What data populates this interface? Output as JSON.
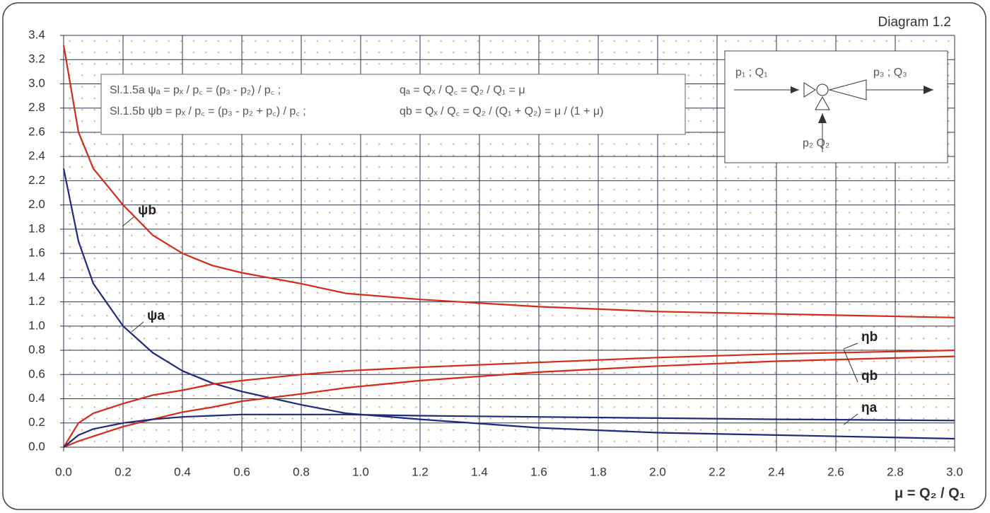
{
  "chart_data": {
    "type": "line",
    "title": "Diagram 1.2",
    "x_label": "μ = Q₂ / Q₁",
    "annotations": {
      "formula_a": "Sl.1.5a  ψₐ = pₓ / p꜀ = (p₃ - p₂) / p꜀ ;",
      "formula_a_q": "qₐ = Qₓ / Q꜀ = Q₂ / Q₁ = μ",
      "formula_b": "Sl.1.5b  ψb = pₓ / p꜀ = (p₃ - p₂ + p꜀) / p꜀ ;",
      "formula_b_q": "qb = Qₓ / Q꜀ = Q₂ / (Q₁ + Q₂) = μ / (1 + μ)",
      "inlet_1": "p₁ ; Q₁",
      "outlet_3": "p₃ ; Q₃",
      "inlet_2": "p₂ Q₂"
    },
    "x": [
      0,
      0.05,
      0.1,
      0.2,
      0.3,
      0.4,
      0.5,
      0.6,
      0.8,
      0.95,
      1.2,
      1.6,
      2.0,
      2.4,
      3.0
    ],
    "series": [
      {
        "name": "ψb",
        "color": "#d42a1a",
        "values": [
          3.32,
          2.6,
          2.3,
          2.0,
          1.75,
          1.6,
          1.5,
          1.44,
          1.35,
          1.27,
          1.22,
          1.16,
          1.12,
          1.1,
          1.07
        ]
      },
      {
        "name": "ψa",
        "color": "#1f2a7a",
        "values": [
          2.3,
          1.7,
          1.35,
          1.0,
          0.78,
          0.63,
          0.53,
          0.46,
          0.35,
          0.28,
          0.23,
          0.16,
          0.12,
          0.1,
          0.07
        ]
      },
      {
        "name": "ηb",
        "color": "#d42a1a",
        "values": [
          0,
          0.2,
          0.28,
          0.36,
          0.43,
          0.47,
          0.52,
          0.55,
          0.6,
          0.63,
          0.66,
          0.7,
          0.74,
          0.77,
          0.8
        ]
      },
      {
        "name": "qb",
        "color": "#d42a1a",
        "values": [
          0,
          0.05,
          0.09,
          0.17,
          0.23,
          0.29,
          0.33,
          0.38,
          0.44,
          0.49,
          0.55,
          0.62,
          0.67,
          0.71,
          0.75
        ]
      },
      {
        "name": "ηa",
        "color": "#1f2a7a",
        "values": [
          0,
          0.1,
          0.15,
          0.2,
          0.23,
          0.25,
          0.26,
          0.27,
          0.27,
          0.27,
          0.26,
          0.25,
          0.24,
          0.23,
          0.22
        ]
      }
    ],
    "xlim": [
      0,
      3.0
    ],
    "ylim": [
      0,
      3.4
    ],
    "xticks": [
      {
        "value": 0,
        "label": "0.0"
      },
      {
        "value": 0.2,
        "label": "0.2"
      },
      {
        "value": 0.4,
        "label": "0.4"
      },
      {
        "value": 0.6,
        "label": "0.6"
      },
      {
        "value": 0.8,
        "label": "0.8"
      },
      {
        "value": 1.0,
        "label": "1.0"
      },
      {
        "value": 1.2,
        "label": "1.2"
      },
      {
        "value": 1.4,
        "label": "1.4"
      },
      {
        "value": 1.6,
        "label": "1.6"
      },
      {
        "value": 1.8,
        "label": "1.8"
      },
      {
        "value": 2.0,
        "label": "2.0"
      },
      {
        "value": 2.2,
        "label": "2.2"
      },
      {
        "value": 2.4,
        "label": "2.4"
      },
      {
        "value": 2.6,
        "label": "2.6"
      },
      {
        "value": 2.8,
        "label": "2.8"
      },
      {
        "value": 3.0,
        "label": "3.0"
      }
    ],
    "yticks": [
      {
        "value": 0,
        "label": "0.0"
      },
      {
        "value": 0.2,
        "label": "0.2"
      },
      {
        "value": 0.4,
        "label": "0.4"
      },
      {
        "value": 0.6,
        "label": "0.6"
      },
      {
        "value": 0.8,
        "label": "0.8"
      },
      {
        "value": 1.0,
        "label": "1.0"
      },
      {
        "value": 1.2,
        "label": "1.2"
      },
      {
        "value": 1.4,
        "label": "1.4"
      },
      {
        "value": 1.6,
        "label": "1.6"
      },
      {
        "value": 1.8,
        "label": "1.8"
      },
      {
        "value": 2.0,
        "label": "2.0"
      },
      {
        "value": 2.2,
        "label": "2.2"
      },
      {
        "value": 2.4,
        "label": "2.4"
      },
      {
        "value": 2.6,
        "label": "2.6"
      },
      {
        "value": 2.8,
        "label": "2.8"
      },
      {
        "value": 3.0,
        "label": "3.0"
      },
      {
        "value": 3.2,
        "label": "3.2"
      },
      {
        "value": 3.4,
        "label": "3.4"
      }
    ],
    "grid": true
  }
}
